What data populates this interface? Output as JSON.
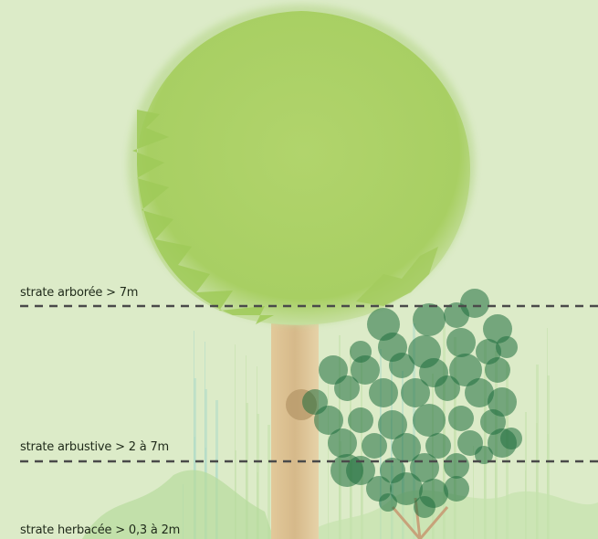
{
  "strata": {
    "arboree": {
      "label": "strate arborée > 7m"
    },
    "arbustive": {
      "label": "strate arbustive > 2 à 7m"
    },
    "herbacee": {
      "label": "strate herbacée > 0,3 à 2m"
    }
  },
  "colors": {
    "background": "#dcebc8",
    "tree_crown": "#abd066",
    "tree_crown_edge": "#9cc75a",
    "trunk": "#d8bf8c",
    "shrub_leaf": "#1f6e3e",
    "grass": "#b8dfa0",
    "grass_blue": "#a9d8c8",
    "dashed_line": "#4a4a4a"
  }
}
